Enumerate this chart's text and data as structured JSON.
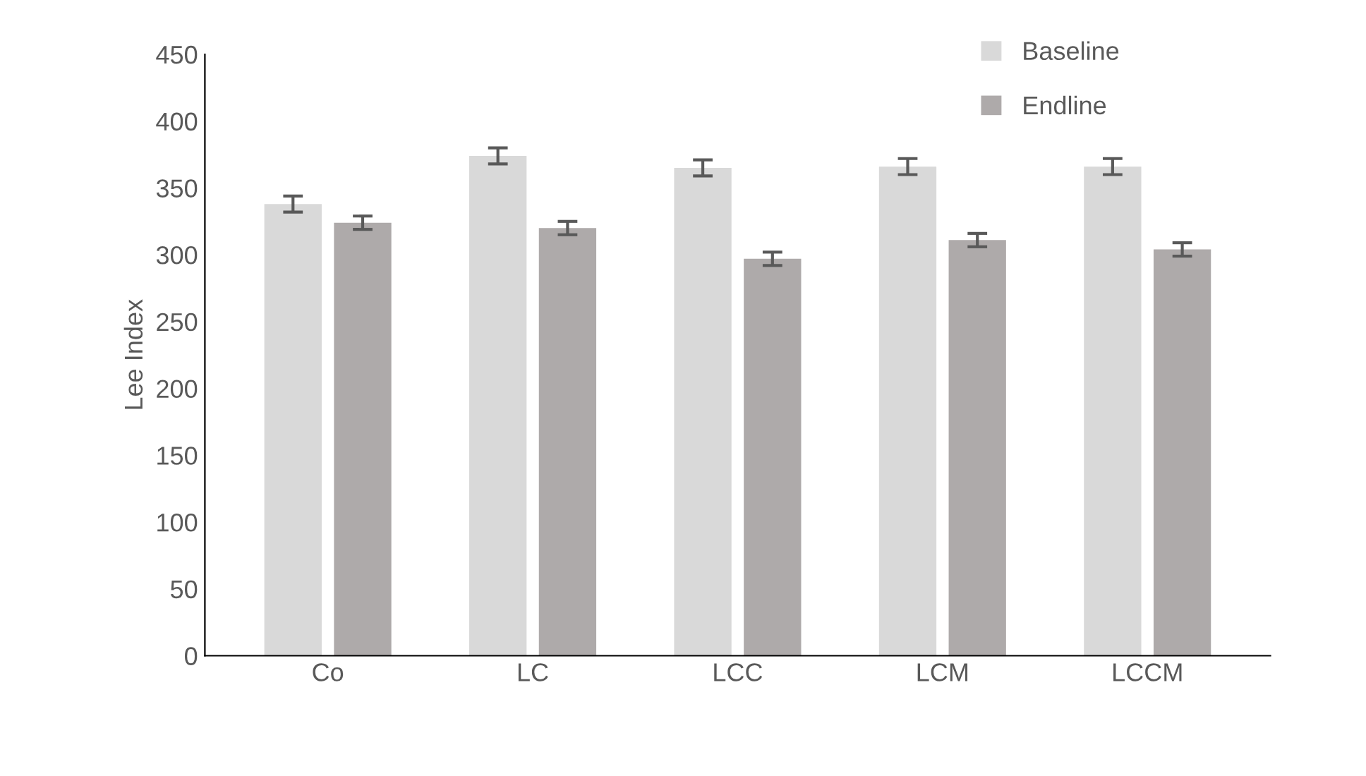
{
  "chart_data": {
    "type": "bar",
    "ylabel": "Lee Index",
    "categories": [
      "Co",
      "LC",
      "LCC",
      "LCM",
      "LCCM"
    ],
    "series": [
      {
        "name": "Baseline",
        "color": "#d9d9d9",
        "values": [
          338,
          374,
          365,
          366,
          366
        ],
        "errors": [
          6,
          6,
          6,
          6,
          6
        ]
      },
      {
        "name": "Endline",
        "color": "#aeaaaa",
        "values": [
          324,
          320,
          297,
          311,
          304
        ],
        "errors": [
          5,
          5,
          5,
          5,
          5
        ]
      }
    ],
    "ylim": [
      0,
      450
    ],
    "yticks": [
      0,
      50,
      100,
      150,
      200,
      250,
      300,
      350,
      400,
      450
    ],
    "grid": false,
    "legend": "top right"
  }
}
